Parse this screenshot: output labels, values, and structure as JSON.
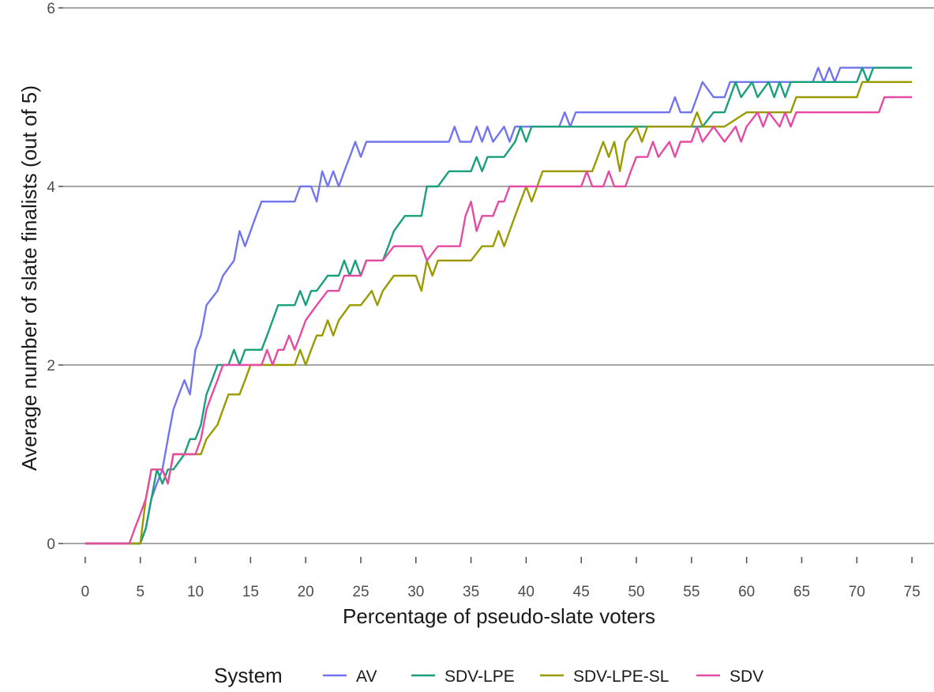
{
  "chart_data": {
    "type": "line",
    "title": "",
    "xlabel": "Percentage of pseudo-slate voters",
    "ylabel": "Average number of slate finalists (out of 5)",
    "xlim": [
      -2,
      77
    ],
    "ylim": [
      -0.15,
      6.0
    ],
    "xticks": [
      0,
      5,
      10,
      15,
      20,
      25,
      30,
      35,
      40,
      45,
      50,
      55,
      60,
      65,
      70,
      75
    ],
    "xtick_labels": [
      "0",
      "5",
      "10",
      "15",
      "20",
      "25",
      "30",
      "35",
      "40",
      "45",
      "50",
      "55",
      "60",
      "65",
      "70",
      "75"
    ],
    "yticks": [
      0,
      2,
      4,
      6
    ],
    "ytick_labels": [
      "0",
      "2",
      "4",
      "6"
    ],
    "grid": "horizontal",
    "legend": {
      "title": "System",
      "position": "bottom"
    },
    "series": [
      {
        "name": "AV",
        "color": "#7275f0",
        "points": [
          [
            0,
            0
          ],
          [
            4,
            0
          ],
          [
            4.5,
            0
          ],
          [
            5,
            0
          ],
          [
            5.5,
            0.17
          ],
          [
            6,
            0.5
          ],
          [
            6.5,
            0.67
          ],
          [
            7,
            0.83
          ],
          [
            7.5,
            1.17
          ],
          [
            8,
            1.5
          ],
          [
            8.5,
            1.67
          ],
          [
            9,
            1.83
          ],
          [
            9.5,
            1.67
          ],
          [
            10,
            2.17
          ],
          [
            10.5,
            2.33
          ],
          [
            11,
            2.67
          ],
          [
            12,
            2.83
          ],
          [
            12.5,
            3
          ],
          [
            13.5,
            3.17
          ],
          [
            14,
            3.5
          ],
          [
            14.5,
            3.33
          ],
          [
            15,
            3.5
          ],
          [
            15.5,
            3.67
          ],
          [
            16,
            3.83
          ],
          [
            17,
            3.83
          ],
          [
            19,
            3.83
          ],
          [
            19.5,
            4
          ],
          [
            20.5,
            4
          ],
          [
            21,
            3.83
          ],
          [
            21.5,
            4.17
          ],
          [
            22,
            4
          ],
          [
            22.5,
            4.17
          ],
          [
            23,
            4
          ],
          [
            23.5,
            4.17
          ],
          [
            24,
            4.33
          ],
          [
            24.5,
            4.5
          ],
          [
            25,
            4.33
          ],
          [
            25.5,
            4.5
          ],
          [
            33,
            4.5
          ],
          [
            33.5,
            4.67
          ],
          [
            34,
            4.5
          ],
          [
            35,
            4.5
          ],
          [
            35.5,
            4.67
          ],
          [
            36,
            4.5
          ],
          [
            36.5,
            4.67
          ],
          [
            37,
            4.5
          ],
          [
            38,
            4.67
          ],
          [
            38.5,
            4.5
          ],
          [
            39,
            4.67
          ],
          [
            43,
            4.67
          ],
          [
            43.5,
            4.83
          ],
          [
            44,
            4.67
          ],
          [
            44.5,
            4.83
          ],
          [
            53,
            4.83
          ],
          [
            53.5,
            5
          ],
          [
            54,
            4.83
          ],
          [
            55,
            4.83
          ],
          [
            55.5,
            5
          ],
          [
            56,
            5.17
          ],
          [
            57,
            5
          ],
          [
            58,
            5
          ],
          [
            58.5,
            5.17
          ],
          [
            66,
            5.17
          ],
          [
            66.5,
            5.33
          ],
          [
            67,
            5.17
          ],
          [
            67.5,
            5.33
          ],
          [
            68,
            5.17
          ],
          [
            68.5,
            5.33
          ],
          [
            75,
            5.33
          ]
        ]
      },
      {
        "name": "SDV-LPE",
        "color": "#18a07a",
        "points": [
          [
            0,
            0
          ],
          [
            5,
            0
          ],
          [
            5.5,
            0.17
          ],
          [
            6,
            0.5
          ],
          [
            6.5,
            0.83
          ],
          [
            7,
            0.67
          ],
          [
            7.5,
            0.83
          ],
          [
            8,
            0.83
          ],
          [
            9,
            1
          ],
          [
            9.5,
            1.17
          ],
          [
            10,
            1.17
          ],
          [
            10.5,
            1.33
          ],
          [
            11,
            1.67
          ],
          [
            11.5,
            1.83
          ],
          [
            12,
            2
          ],
          [
            13,
            2
          ],
          [
            13.5,
            2.17
          ],
          [
            14,
            2
          ],
          [
            14.5,
            2.17
          ],
          [
            16,
            2.17
          ],
          [
            16.5,
            2.33
          ],
          [
            17,
            2.5
          ],
          [
            17.5,
            2.67
          ],
          [
            19,
            2.67
          ],
          [
            19.5,
            2.83
          ],
          [
            20,
            2.67
          ],
          [
            20.5,
            2.83
          ],
          [
            21,
            2.83
          ],
          [
            22,
            3
          ],
          [
            23,
            3
          ],
          [
            23.5,
            3.17
          ],
          [
            24,
            3
          ],
          [
            24.5,
            3.17
          ],
          [
            25,
            3
          ],
          [
            25.5,
            3.17
          ],
          [
            27,
            3.17
          ],
          [
            27.5,
            3.33
          ],
          [
            28,
            3.5
          ],
          [
            29,
            3.67
          ],
          [
            30.5,
            3.67
          ],
          [
            31,
            4
          ],
          [
            32,
            4
          ],
          [
            33,
            4.17
          ],
          [
            35,
            4.17
          ],
          [
            35.5,
            4.33
          ],
          [
            36,
            4.17
          ],
          [
            36.5,
            4.33
          ],
          [
            37,
            4.33
          ],
          [
            38,
            4.33
          ],
          [
            39,
            4.5
          ],
          [
            39.5,
            4.67
          ],
          [
            40,
            4.5
          ],
          [
            40.5,
            4.67
          ],
          [
            56,
            4.67
          ],
          [
            57,
            4.83
          ],
          [
            58,
            4.83
          ],
          [
            58.5,
            5
          ],
          [
            59,
            5.17
          ],
          [
            59.5,
            5
          ],
          [
            60.5,
            5.17
          ],
          [
            61,
            5
          ],
          [
            62,
            5.17
          ],
          [
            62.5,
            5
          ],
          [
            63,
            5.17
          ],
          [
            63.5,
            5
          ],
          [
            64,
            5.17
          ],
          [
            70,
            5.17
          ],
          [
            70.5,
            5.33
          ],
          [
            71,
            5.17
          ],
          [
            71.5,
            5.33
          ],
          [
            75,
            5.33
          ]
        ]
      },
      {
        "name": "SDV-LPE-SL",
        "color": "#9a9a00",
        "points": [
          [
            0,
            0
          ],
          [
            5,
            0
          ],
          [
            5.5,
            0.5
          ],
          [
            6,
            0.83
          ],
          [
            7,
            0.83
          ],
          [
            7.5,
            0.67
          ],
          [
            8,
            1
          ],
          [
            10,
            1
          ],
          [
            10.5,
            1
          ],
          [
            11,
            1.17
          ],
          [
            12,
            1.33
          ],
          [
            12.5,
            1.5
          ],
          [
            13,
            1.67
          ],
          [
            14,
            1.67
          ],
          [
            14.5,
            1.83
          ],
          [
            15,
            2
          ],
          [
            19,
            2
          ],
          [
            19.5,
            2.17
          ],
          [
            20,
            2
          ],
          [
            20.5,
            2.17
          ],
          [
            21,
            2.33
          ],
          [
            21.5,
            2.33
          ],
          [
            22,
            2.5
          ],
          [
            22.5,
            2.33
          ],
          [
            23,
            2.5
          ],
          [
            24,
            2.67
          ],
          [
            25,
            2.67
          ],
          [
            26,
            2.83
          ],
          [
            26.5,
            2.67
          ],
          [
            27,
            2.83
          ],
          [
            28,
            3
          ],
          [
            30,
            3
          ],
          [
            30.5,
            2.83
          ],
          [
            31,
            3.17
          ],
          [
            31.5,
            3
          ],
          [
            32,
            3.17
          ],
          [
            35,
            3.17
          ],
          [
            36,
            3.33
          ],
          [
            37,
            3.33
          ],
          [
            37.5,
            3.5
          ],
          [
            38,
            3.33
          ],
          [
            38.5,
            3.5
          ],
          [
            39,
            3.67
          ],
          [
            40,
            4
          ],
          [
            40.5,
            3.83
          ],
          [
            41,
            4
          ],
          [
            41.5,
            4.17
          ],
          [
            46,
            4.17
          ],
          [
            47,
            4.5
          ],
          [
            47.5,
            4.33
          ],
          [
            48,
            4.5
          ],
          [
            48.5,
            4.17
          ],
          [
            49,
            4.5
          ],
          [
            50,
            4.67
          ],
          [
            50.5,
            4.5
          ],
          [
            51,
            4.67
          ],
          [
            55,
            4.67
          ],
          [
            55.5,
            4.83
          ],
          [
            56,
            4.67
          ],
          [
            58,
            4.67
          ],
          [
            60,
            4.83
          ],
          [
            64,
            4.83
          ],
          [
            64.5,
            5
          ],
          [
            66,
            5
          ],
          [
            70,
            5
          ],
          [
            70.5,
            5.17
          ],
          [
            75,
            5.17
          ]
        ]
      },
      {
        "name": "SDV",
        "color": "#e64ba3",
        "points": [
          [
            0,
            0
          ],
          [
            4,
            0
          ],
          [
            4.5,
            0.17
          ],
          [
            5,
            0.33
          ],
          [
            5.5,
            0.5
          ],
          [
            6,
            0.83
          ],
          [
            7,
            0.83
          ],
          [
            7.5,
            0.67
          ],
          [
            8,
            1
          ],
          [
            10,
            1
          ],
          [
            10.5,
            1.17
          ],
          [
            11,
            1.5
          ],
          [
            11.5,
            1.67
          ],
          [
            12,
            1.83
          ],
          [
            12.5,
            2
          ],
          [
            16,
            2
          ],
          [
            16.5,
            2.17
          ],
          [
            17,
            2
          ],
          [
            17.5,
            2.17
          ],
          [
            18,
            2.17
          ],
          [
            18.5,
            2.33
          ],
          [
            19,
            2.17
          ],
          [
            19.5,
            2.33
          ],
          [
            20,
            2.5
          ],
          [
            21,
            2.67
          ],
          [
            22,
            2.83
          ],
          [
            23,
            2.83
          ],
          [
            23.5,
            3
          ],
          [
            25,
            3
          ],
          [
            25.5,
            3.17
          ],
          [
            27,
            3.17
          ],
          [
            28,
            3.33
          ],
          [
            30.5,
            3.33
          ],
          [
            31,
            3.17
          ],
          [
            32,
            3.33
          ],
          [
            34,
            3.33
          ],
          [
            34.5,
            3.67
          ],
          [
            35,
            3.83
          ],
          [
            35.5,
            3.5
          ],
          [
            36,
            3.67
          ],
          [
            37,
            3.67
          ],
          [
            37.5,
            3.83
          ],
          [
            38,
            3.83
          ],
          [
            38.5,
            4
          ],
          [
            45,
            4
          ],
          [
            45.5,
            4.17
          ],
          [
            46,
            4
          ],
          [
            47,
            4
          ],
          [
            47.5,
            4.17
          ],
          [
            48,
            4
          ],
          [
            49,
            4
          ],
          [
            49.5,
            4.17
          ],
          [
            50,
            4.33
          ],
          [
            51,
            4.33
          ],
          [
            51.5,
            4.5
          ],
          [
            52,
            4.33
          ],
          [
            53,
            4.5
          ],
          [
            53.5,
            4.33
          ],
          [
            54,
            4.5
          ],
          [
            55,
            4.5
          ],
          [
            55.5,
            4.67
          ],
          [
            56,
            4.5
          ],
          [
            57,
            4.67
          ],
          [
            58,
            4.5
          ],
          [
            59,
            4.67
          ],
          [
            59.5,
            4.5
          ],
          [
            60,
            4.67
          ],
          [
            61,
            4.83
          ],
          [
            61.5,
            4.67
          ],
          [
            62,
            4.83
          ],
          [
            63,
            4.67
          ],
          [
            63.5,
            4.83
          ],
          [
            64,
            4.67
          ],
          [
            64.5,
            4.83
          ],
          [
            72,
            4.83
          ],
          [
            72.5,
            5
          ],
          [
            75,
            5
          ]
        ]
      }
    ]
  }
}
